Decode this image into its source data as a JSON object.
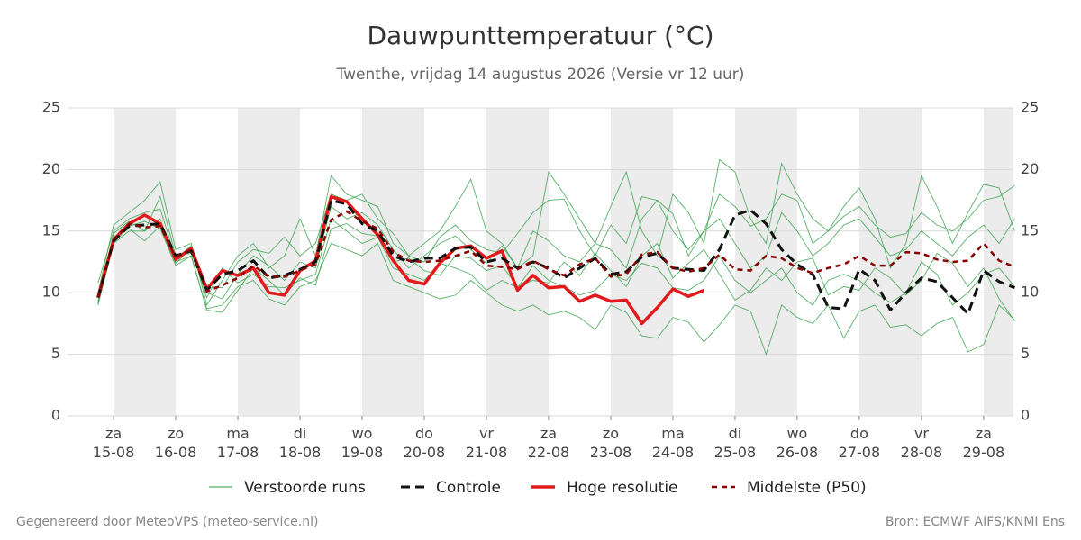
{
  "chart_data": {
    "type": "line",
    "title": "Dauwpunttemperatuur (°C)",
    "subtitle": "Twenthe, vrijdag 14 augustus 2026 (Versie vr 12 uur)",
    "footer_left": "Gegenereerd door MeteoVPS (meteo-service.nl)",
    "footer_right": "Bron: ECMWF AIFS/KNMI Ens",
    "grid": true,
    "xlim": [
      14.26,
      29.48
    ],
    "ylim": [
      0,
      25
    ],
    "yticks": [
      0,
      5,
      10,
      15,
      20,
      25
    ],
    "xticks": [
      {
        "value": 15,
        "label": "za 15-08"
      },
      {
        "value": 16,
        "label": "zo 16-08"
      },
      {
        "value": 17,
        "label": "ma 17-08"
      },
      {
        "value": 18,
        "label": "di 18-08"
      },
      {
        "value": 19,
        "label": "wo 19-08"
      },
      {
        "value": 20,
        "label": "do 20-08"
      },
      {
        "value": 21,
        "label": "vr 21-08"
      },
      {
        "value": 22,
        "label": "za 22-08"
      },
      {
        "value": 23,
        "label": "zo 23-08"
      },
      {
        "value": 24,
        "label": "ma 24-08"
      },
      {
        "value": 25,
        "label": "di 25-08"
      },
      {
        "value": 26,
        "label": "wo 26-08"
      },
      {
        "value": 27,
        "label": "do 27-08"
      },
      {
        "value": 28,
        "label": "vr 28-08"
      },
      {
        "value": 29,
        "label": "za 29-08"
      }
    ],
    "x": [
      14.75,
      15,
      15.25,
      15.5,
      15.75,
      16,
      16.25,
      16.5,
      16.75,
      17,
      17.25,
      17.5,
      17.75,
      18,
      18.25,
      18.5,
      18.75,
      19,
      19.25,
      19.5,
      19.75,
      20,
      20.25,
      20.5,
      20.75,
      21,
      21.25,
      21.5,
      21.75,
      22,
      22.25,
      22.5,
      22.75,
      23,
      23.25,
      23.5,
      23.75,
      24,
      24.25,
      24.5,
      24.75,
      25,
      25.25,
      25.5,
      25.75,
      26,
      26.25,
      26.5,
      26.75,
      27,
      27.25,
      27.5,
      27.75,
      28,
      28.25,
      28.5,
      28.75,
      29,
      29.25,
      29.5
    ],
    "ensemble": {
      "name": "Verstoorde runs",
      "color": "#2e9e44",
      "members": [
        [
          10,
          15.5,
          16.5,
          17.5,
          19,
          13.5,
          14,
          9,
          11,
          13,
          14,
          12,
          13,
          16,
          13,
          19.5,
          18,
          17.5,
          17,
          14,
          13,
          14,
          15,
          17,
          19.2,
          15,
          14,
          12,
          13,
          19.8,
          18,
          16,
          14,
          17,
          19.8,
          15,
          13,
          18,
          16.5,
          14,
          20.8,
          19.8,
          16,
          14,
          20.5,
          18,
          16,
          15,
          17,
          18.5,
          16,
          12,
          14,
          19.5,
          17,
          14,
          16.5,
          18.8,
          18.5,
          15
        ],
        [
          9,
          14,
          15,
          15,
          16,
          12.5,
          13,
          8.7,
          9,
          10.5,
          11,
          9.5,
          9,
          10.5,
          11,
          14,
          13.5,
          13,
          14,
          11,
          10.5,
          10,
          9.5,
          9.8,
          11,
          10,
          9,
          8.5,
          9,
          8.2,
          8.5,
          8,
          7,
          9,
          8.4,
          6.5,
          6.3,
          8,
          7.6,
          6,
          7.4,
          9,
          8.5,
          5,
          9,
          8,
          7.5,
          9,
          6.3,
          8.5,
          9,
          7.2,
          7.4,
          6.5,
          7.5,
          8,
          5.2,
          5.8,
          9,
          7.8
        ],
        [
          9.3,
          14.8,
          15.8,
          15,
          17.8,
          13,
          13.2,
          10,
          9.5,
          11.5,
          13,
          12.2,
          11,
          12.5,
          12,
          17,
          16,
          16.5,
          15.5,
          13.5,
          12,
          13,
          14,
          14.6,
          13.5,
          12.4,
          13.8,
          12,
          15,
          14.2,
          13,
          12.5,
          14,
          13.5,
          12,
          16,
          17.5,
          15,
          13.5,
          15,
          16,
          14,
          12,
          13,
          16.5,
          15,
          13,
          14,
          15.5,
          16,
          14.5,
          13,
          13.5,
          15,
          14,
          13,
          14.5,
          15.5,
          14,
          16
        ],
        [
          9.8,
          14.5,
          15.2,
          14.2,
          15.4,
          12.4,
          13.6,
          9.6,
          12,
          10.8,
          11.5,
          10.5,
          10.4,
          11,
          11.5,
          16,
          15,
          14,
          14.5,
          12,
          11.5,
          11,
          12.4,
          12,
          11.5,
          10.2,
          11,
          10.4,
          12.2,
          11,
          10.5,
          9.8,
          10.2,
          11.5,
          11,
          12.4,
          12,
          10.4,
          10.2,
          11,
          13,
          11,
          10,
          11,
          12,
          10,
          9,
          11,
          11.5,
          11,
          10,
          9.2,
          10,
          12.5,
          11.5,
          9,
          10,
          11.5,
          12,
          10.5
        ],
        [
          10.8,
          15,
          16,
          16.5,
          16.8,
          12.8,
          13.8,
          10.6,
          10.4,
          12.5,
          13.5,
          13.2,
          14.5,
          13,
          14,
          18,
          17.5,
          18,
          16,
          14.8,
          13,
          12.5,
          14.5,
          15.5,
          14.2,
          13.5,
          13.2,
          14.8,
          16.5,
          17.5,
          17.6,
          15,
          13,
          15.5,
          14,
          17.8,
          17.5,
          16.4,
          13,
          15,
          18,
          17,
          15.4,
          16,
          18,
          17.5,
          14,
          15,
          16.2,
          17,
          15.5,
          14.5,
          14.8,
          16.5,
          15.5,
          15,
          16,
          17.5,
          17.8,
          18.7
        ],
        [
          9.1,
          14,
          15.4,
          15.8,
          15.2,
          12.2,
          13,
          8.6,
          8.4,
          10.2,
          12,
          11,
          9.8,
          11.2,
          10.6,
          15.2,
          15.6,
          14.8,
          14.6,
          12.5,
          12.8,
          11.8,
          11.4,
          13,
          12.8,
          11.8,
          12.2,
          10.5,
          11,
          10.8,
          12.5,
          11.4,
          13.2,
          11.8,
          10.5,
          13,
          14,
          11.2,
          12.4,
          13.5,
          11.5,
          9.4,
          10.2,
          12,
          11,
          12.5,
          12.8,
          9.8,
          10.5,
          10.2,
          12,
          11.2,
          9.8,
          11,
          13.2,
          12.4,
          10.5,
          12,
          9.5,
          7.7
        ]
      ]
    },
    "series": [
      {
        "name": "Controle",
        "color": "#111111",
        "linestyle": "dashed",
        "values": [
          9.6,
          14.2,
          15.4,
          15.5,
          15.6,
          13,
          13.4,
          10.2,
          11.5,
          11.8,
          12.6,
          11.2,
          11.4,
          11.9,
          12.5,
          17.5,
          17.2,
          15.6,
          15,
          13,
          12.5,
          12.8,
          12.8,
          13.6,
          13.7,
          12.5,
          12.8,
          12,
          12.5,
          12,
          11.2,
          12,
          12.8,
          11.5,
          11.7,
          12.9,
          13.2,
          12,
          11.9,
          11.8,
          13.5,
          16.3,
          16.7,
          15.6,
          13.5,
          12.3,
          11.5,
          8.8,
          8.7,
          11.9,
          11,
          8.6,
          10,
          11.2,
          10.9,
          9.6,
          8.3,
          11.8,
          10.9,
          10.4
        ]
      },
      {
        "name": "Hoge resolutie",
        "color": "#e31a1c",
        "linestyle": "solid",
        "values": [
          9.6,
          14.3,
          15.6,
          16.3,
          15.6,
          12.7,
          13.6,
          10.3,
          11.8,
          11.4,
          12,
          10,
          9.8,
          11.8,
          12.6,
          17.8,
          17.4,
          16,
          14.7,
          12.6,
          11,
          10.7,
          12.4,
          13.6,
          13.8,
          12.8,
          13.4,
          10.2,
          11.4,
          10.4,
          10.5,
          9.3,
          9.8,
          9.3,
          9.4,
          7.5,
          8.8,
          10.3,
          9.7,
          10.2,
          null,
          null,
          null,
          null,
          null,
          null,
          null,
          null,
          null,
          null,
          null,
          null,
          null,
          null,
          null,
          null,
          null,
          null,
          null,
          null
        ]
      },
      {
        "name": "Middelste (P50)",
        "color": "#8b0000",
        "linestyle": "dotted",
        "values": [
          9.6,
          14.3,
          15.6,
          15.3,
          15.4,
          12.9,
          13.5,
          10.1,
          10.6,
          11.2,
          12.2,
          11.3,
          11.3,
          11.8,
          12.3,
          15.9,
          16.6,
          15.8,
          15.2,
          13.3,
          12.6,
          12.5,
          12.6,
          13,
          13.4,
          12.2,
          12.1,
          11.9,
          12.6,
          11.9,
          11.4,
          12.3,
          12.8,
          11.3,
          11.5,
          13.1,
          13.3,
          12,
          11.7,
          12,
          13.1,
          11.9,
          11.8,
          13,
          12.8,
          12,
          11.6,
          12,
          12.3,
          13,
          12.2,
          12.2,
          13.3,
          13.2,
          12.7,
          12.5,
          12.6,
          14,
          12.6,
          12.1
        ]
      }
    ]
  }
}
